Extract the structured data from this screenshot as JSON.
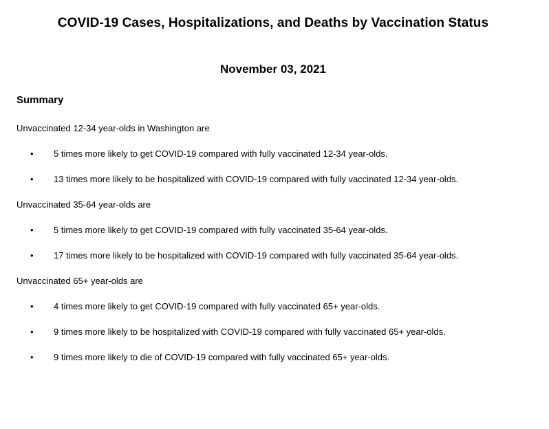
{
  "document": {
    "title": "COVID-19 Cases, Hospitalizations, and Deaths by Vaccination Status",
    "date": "November 03, 2021",
    "summary_heading": "Summary",
    "bullet_glyph": "•",
    "text_color": "#000000",
    "background_color": "#ffffff",
    "sections": [
      {
        "intro": "Unvaccinated 12-34 year-olds in Washington are",
        "bullets": [
          "5 times more likely to get COVID-19 compared with fully vaccinated 12-34 year-olds.",
          "13 times more likely to be hospitalized with COVID-19 compared with fully vaccinated 12-34 year-olds."
        ]
      },
      {
        "intro": "Unvaccinated 35-64 year-olds are",
        "bullets": [
          "5 times more likely to get COVID-19 compared with fully vaccinated 35-64 year-olds.",
          "17 times more likely to be hospitalized with COVID-19 compared with fully vaccinated 35-64 year-olds."
        ]
      },
      {
        "intro": "Unvaccinated 65+ year-olds are",
        "bullets": [
          "4 times more likely to get COVID-19 compared with fully vaccinated 65+ year-olds.",
          "9 times more likely to be hospitalized with COVID-19 compared with fully vaccinated 65+ year-olds.",
          "9 times more likely to die of COVID-19 compared with fully vaccinated 65+ year-olds."
        ]
      }
    ]
  }
}
